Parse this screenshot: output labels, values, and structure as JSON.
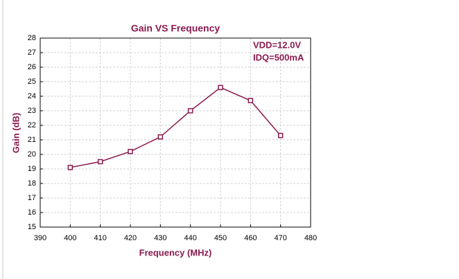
{
  "chart_data": {
    "type": "line",
    "title": "Gain VS Frequency",
    "x_label": "Frequency (MHz)",
    "y_label": "Gain (dB)",
    "annotations": [
      "VDD=12.0V",
      "IDQ=500mA"
    ],
    "x": [
      400,
      410,
      420,
      430,
      440,
      450,
      460,
      470
    ],
    "values": [
      19.1,
      19.5,
      20.2,
      21.2,
      23.0,
      24.6,
      23.7,
      21.3
    ],
    "color": "#8b1a4e",
    "xlim": [
      390,
      480
    ],
    "xticks": [
      390,
      400,
      410,
      420,
      430,
      440,
      450,
      460,
      470,
      480
    ],
    "ylim": [
      15,
      28
    ],
    "yticks": [
      15,
      16,
      17,
      18,
      19,
      20,
      21,
      22,
      23,
      24,
      25,
      26,
      27,
      28
    ],
    "grid": true
  }
}
